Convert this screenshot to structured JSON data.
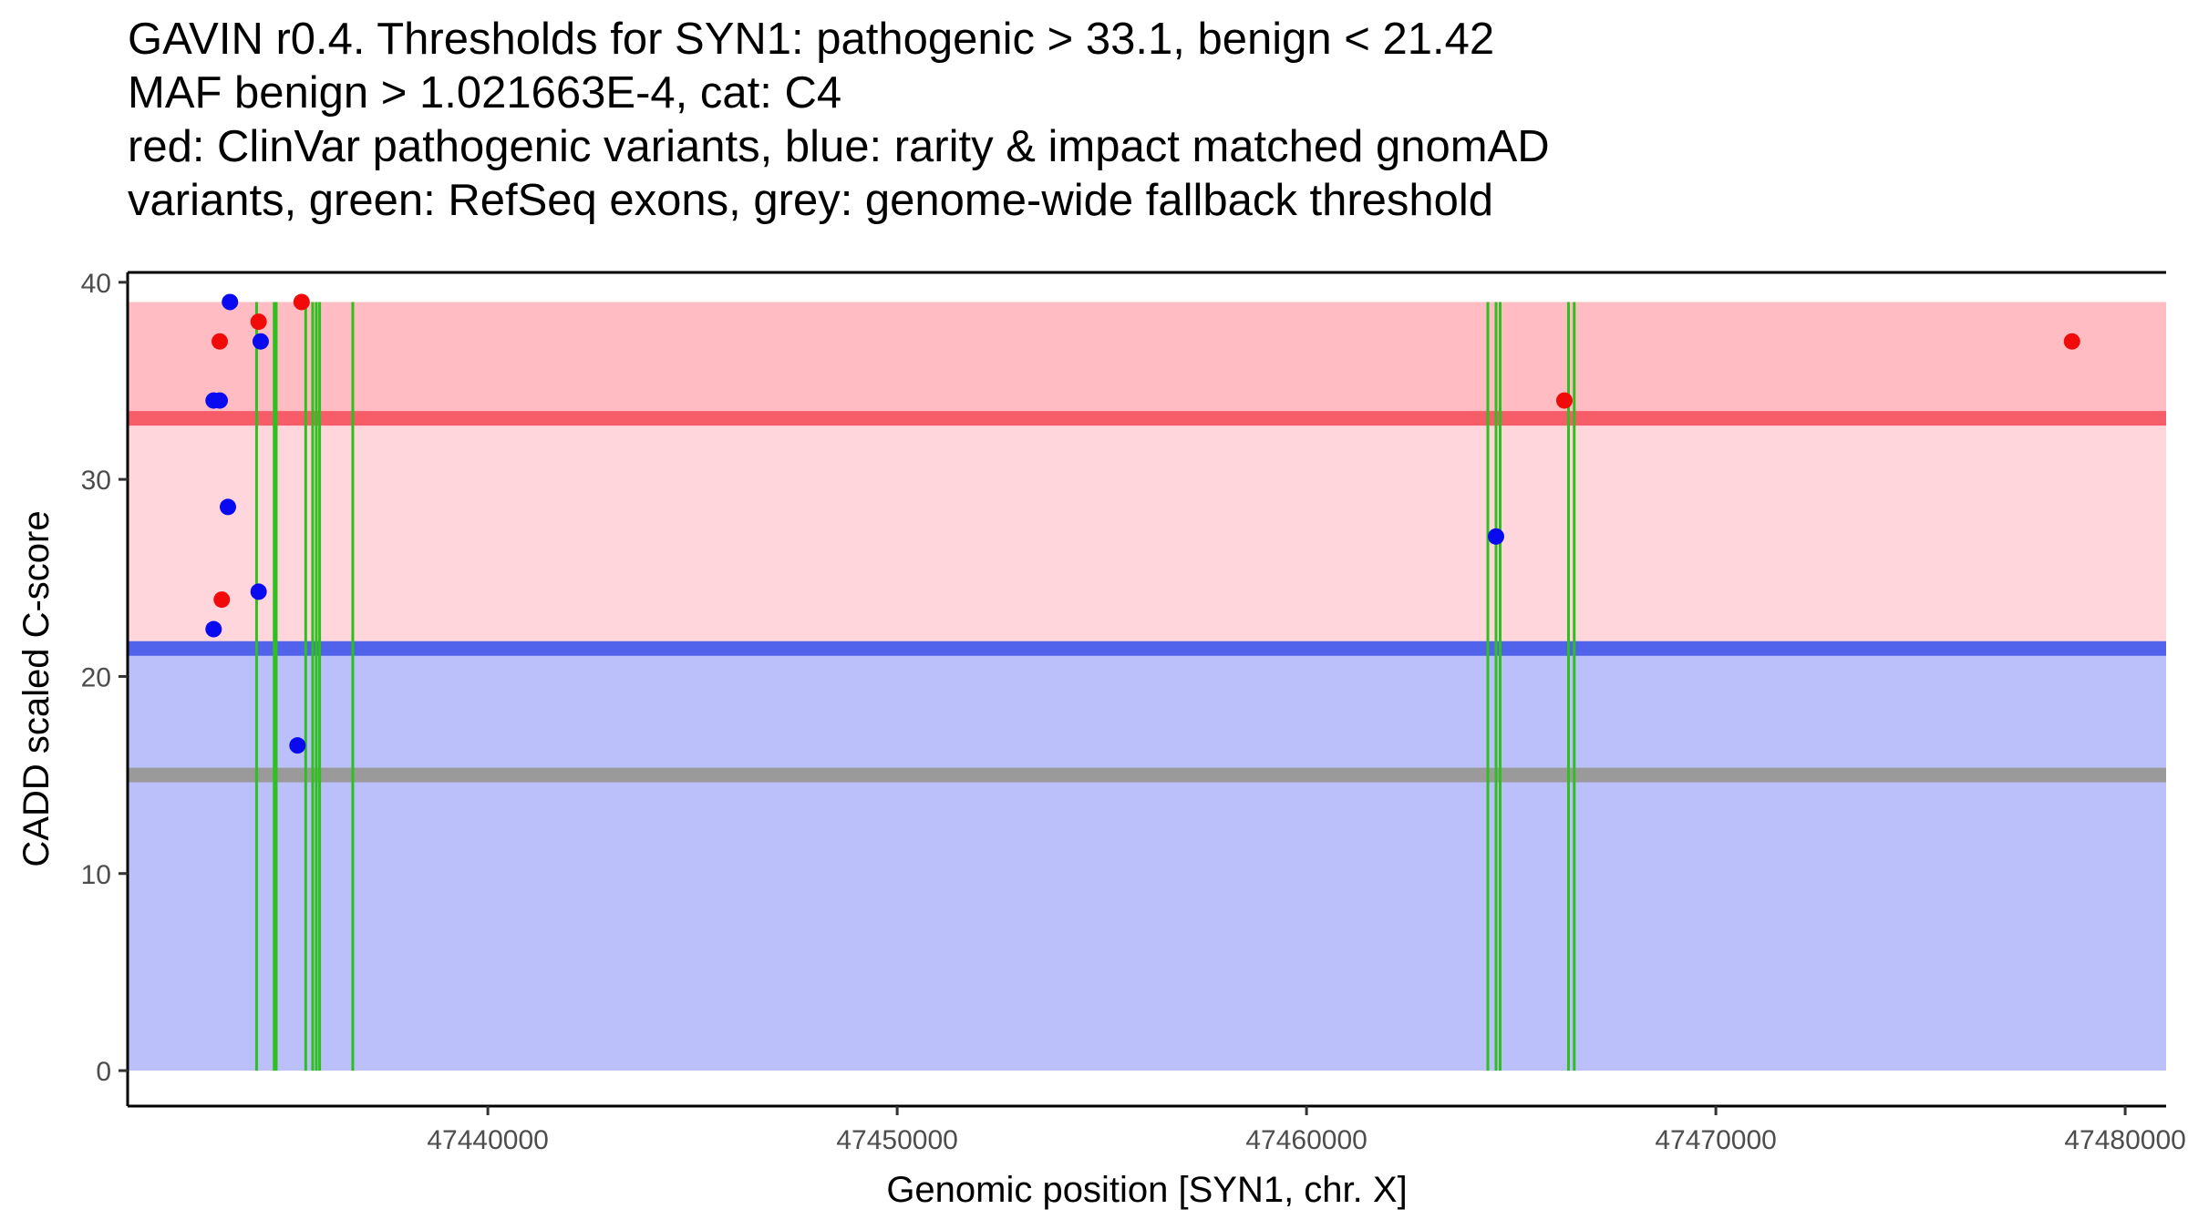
{
  "chart_data": {
    "type": "scatter",
    "title_lines": [
      "GAVIN r0.4. Thresholds for SYN1: pathogenic > 33.1, benign < 21.42",
      "MAF benign > 1.021663E-4, cat: C4",
      "red: ClinVar pathogenic variants, blue: rarity & impact matched gnomAD",
      "variants, green: RefSeq exons, grey: genome-wide fallback threshold"
    ],
    "xlabel": "Genomic position [SYN1, chr. X]",
    "ylabel": "CADD scaled C-score",
    "xlim": [
      47431200,
      47481000
    ],
    "ylim": [
      -1.8,
      40.5
    ],
    "x_ticks": [
      47440000,
      47450000,
      47460000,
      47470000,
      47480000
    ],
    "x_tick_labels": [
      "47440000",
      "47450000",
      "47460000",
      "47470000",
      "47480000"
    ],
    "y_ticks": [
      0,
      10,
      20,
      30,
      40
    ],
    "y_tick_labels": [
      "0",
      "10",
      "20",
      "30",
      "40"
    ],
    "regions": [
      {
        "name": "benign-region",
        "y0": 0,
        "y1": 21.42,
        "color": "#bbc0fb"
      },
      {
        "name": "intermediate-region",
        "y0": 21.42,
        "y1": 33.1,
        "color": "#ffd6dc"
      },
      {
        "name": "pathogenic-region",
        "y0": 33.1,
        "y1": 39,
        "color": "#ffbdc3"
      }
    ],
    "threshold_lines": [
      {
        "name": "pathogenic-threshold-line",
        "y": 33.1,
        "color": "#f75c69"
      },
      {
        "name": "benign-threshold-line",
        "y": 21.42,
        "color": "#5063ea"
      },
      {
        "name": "fallback-threshold-line",
        "y": 15.0,
        "color": "#9a9a9a"
      }
    ],
    "exons": [
      47434350,
      47434780,
      47434830,
      47435550,
      47435720,
      47435810,
      47435890,
      47436700,
      47464430,
      47464630,
      47464730,
      47466400,
      47466540
    ],
    "exon_color": "#2ec01e",
    "series": [
      {
        "name": "ClinVar pathogenic",
        "color": "#f10a0a",
        "points": [
          {
            "x": 47433450,
            "y": 37
          },
          {
            "x": 47433500,
            "y": 23.9
          },
          {
            "x": 47434400,
            "y": 38
          },
          {
            "x": 47435450,
            "y": 39
          },
          {
            "x": 47466300,
            "y": 34
          },
          {
            "x": 47478700,
            "y": 37
          }
        ]
      },
      {
        "name": "gnomAD matched",
        "color": "#0a0af0",
        "points": [
          {
            "x": 47433300,
            "y": 34
          },
          {
            "x": 47433450,
            "y": 34
          },
          {
            "x": 47433700,
            "y": 39
          },
          {
            "x": 47433650,
            "y": 28.6
          },
          {
            "x": 47433300,
            "y": 22.4
          },
          {
            "x": 47434450,
            "y": 37
          },
          {
            "x": 47434400,
            "y": 24.3
          },
          {
            "x": 47435350,
            "y": 16.5
          },
          {
            "x": 47464630,
            "y": 27.1
          }
        ]
      }
    ]
  }
}
